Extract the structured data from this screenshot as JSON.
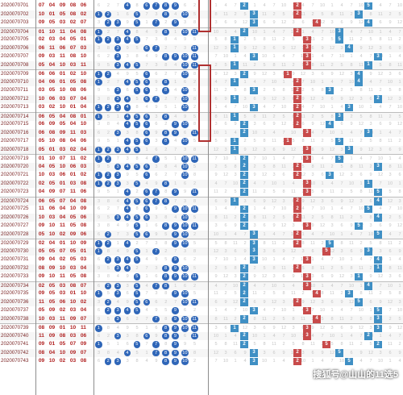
{
  "watermark": "搜狐号@山山的11选5",
  "accent_colors": {
    "ball": "#2f66b8",
    "blue_mark": "#3f8fc4",
    "red_mark": "#c84b4b",
    "period_text": "#7a2424",
    "winning_text": "#b02020",
    "highlight_border": "#b03030"
  },
  "rows": [
    {
      "period": "2020070701",
      "nums": [
        "07",
        "04",
        "09",
        "08",
        "06"
      ]
    },
    {
      "period": "2020070702",
      "nums": [
        "10",
        "01",
        "05",
        "08",
        "02"
      ]
    },
    {
      "period": "2020070703",
      "nums": [
        "09",
        "05",
        "03",
        "02",
        "07"
      ]
    },
    {
      "period": "2020070704",
      "nums": [
        "01",
        "10",
        "11",
        "04",
        "08"
      ]
    },
    {
      "period": "2020070705",
      "nums": [
        "02",
        "03",
        "04",
        "05",
        "01"
      ]
    },
    {
      "period": "2020070706",
      "nums": [
        "06",
        "11",
        "06",
        "07",
        "03"
      ]
    },
    {
      "period": "2020070707",
      "nums": [
        "09",
        "03",
        "11",
        "08",
        "10"
      ]
    },
    {
      "period": "2020070708",
      "nums": [
        "05",
        "04",
        "10",
        "03",
        "11"
      ]
    },
    {
      "period": "2020070709",
      "nums": [
        "06",
        "06",
        "01",
        "02",
        "10"
      ]
    },
    {
      "period": "2020070710",
      "nums": [
        "04",
        "06",
        "01",
        "05",
        "08"
      ]
    },
    {
      "period": "2020070711",
      "nums": [
        "03",
        "05",
        "10",
        "08",
        "06"
      ]
    },
    {
      "period": "2020070712",
      "nums": [
        "10",
        "06",
        "03",
        "07",
        "04"
      ]
    },
    {
      "period": "2020070713",
      "nums": [
        "03",
        "02",
        "10",
        "01",
        "04"
      ]
    },
    {
      "period": "2020070714",
      "nums": [
        "06",
        "05",
        "04",
        "08",
        "01"
      ]
    },
    {
      "period": "2020070715",
      "nums": [
        "06",
        "09",
        "05",
        "04",
        "10"
      ]
    },
    {
      "period": "2020070716",
      "nums": [
        "06",
        "08",
        "09",
        "11",
        "03"
      ]
    },
    {
      "period": "2020070717",
      "nums": [
        "05",
        "10",
        "08",
        "04",
        "06"
      ]
    },
    {
      "period": "2020070718",
      "nums": [
        "05",
        "01",
        "03",
        "02",
        "04"
      ]
    },
    {
      "period": "2020070719",
      "nums": [
        "01",
        "10",
        "07",
        "11",
        "02"
      ]
    },
    {
      "period": "2020070720",
      "nums": [
        "04",
        "05",
        "10",
        "06",
        "03"
      ]
    },
    {
      "period": "2020070721",
      "nums": [
        "10",
        "03",
        "06",
        "01",
        "02"
      ]
    },
    {
      "period": "2020070722",
      "nums": [
        "02",
        "05",
        "01",
        "03",
        "08"
      ]
    },
    {
      "period": "2020070723",
      "nums": [
        "04",
        "09",
        "07",
        "11",
        "06"
      ]
    },
    {
      "period": "2020070724",
      "nums": [
        "06",
        "05",
        "07",
        "04",
        "08"
      ]
    },
    {
      "period": "2020070725",
      "nums": [
        "11",
        "06",
        "04",
        "10",
        "09"
      ]
    },
    {
      "period": "2020070726",
      "nums": [
        "10",
        "03",
        "04",
        "05",
        "06"
      ]
    },
    {
      "period": "2020070727",
      "nums": [
        "09",
        "10",
        "11",
        "05",
        "08"
      ]
    },
    {
      "period": "2020070728",
      "nums": [
        "05",
        "10",
        "02",
        "09",
        "06"
      ]
    },
    {
      "period": "2020070729",
      "nums": [
        "02",
        "04",
        "01",
        "10",
        "09"
      ]
    },
    {
      "period": "2020070730",
      "nums": [
        "05",
        "05",
        "07",
        "05",
        "01"
      ]
    },
    {
      "period": "2020070731",
      "nums": [
        "09",
        "04",
        "02",
        "05",
        "03"
      ]
    },
    {
      "period": "2020070732",
      "nums": [
        "08",
        "09",
        "10",
        "03",
        "04"
      ]
    },
    {
      "period": "2020070733",
      "nums": [
        "09",
        "10",
        "11",
        "05",
        "08"
      ]
    },
    {
      "period": "2020070734",
      "nums": [
        "02",
        "05",
        "03",
        "08",
        "07"
      ]
    },
    {
      "period": "2020070735",
      "nums": [
        "09",
        "05",
        "03",
        "01",
        "10"
      ]
    },
    {
      "period": "2020070736",
      "nums": [
        "11",
        "05",
        "06",
        "10",
        "02"
      ]
    },
    {
      "period": "2020070737",
      "nums": [
        "05",
        "09",
        "02",
        "03",
        "04"
      ]
    },
    {
      "period": "2020070738",
      "nums": [
        "10",
        "03",
        "11",
        "09",
        "07"
      ]
    },
    {
      "period": "2020070739",
      "nums": [
        "08",
        "09",
        "01",
        "10",
        "11"
      ]
    },
    {
      "period": "2020070740",
      "nums": [
        "11",
        "09",
        "08",
        "03",
        "06"
      ]
    },
    {
      "period": "2020070741",
      "nums": [
        "09",
        "01",
        "05",
        "07",
        "09"
      ]
    },
    {
      "period": "2020070742",
      "nums": [
        "08",
        "04",
        "10",
        "09",
        "07"
      ]
    },
    {
      "period": "2020070743",
      "nums": [
        "09",
        "10",
        "02",
        "03",
        "08"
      ]
    }
  ]
}
